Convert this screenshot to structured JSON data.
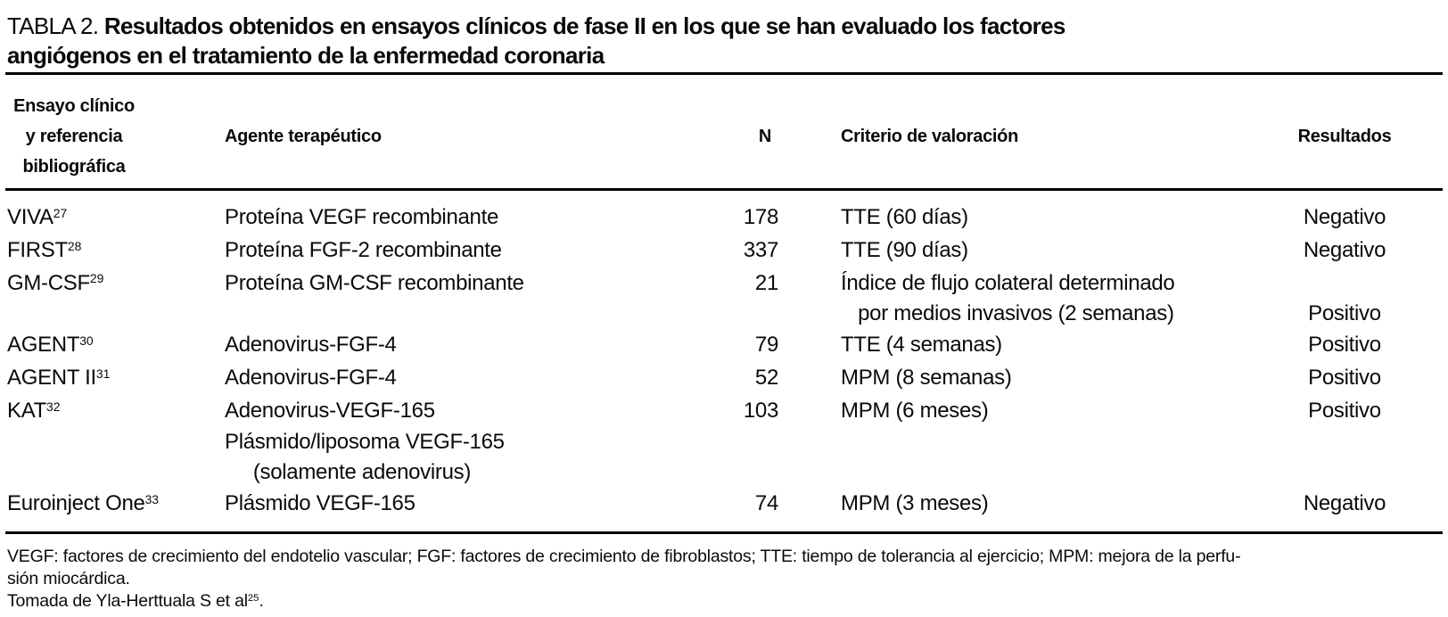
{
  "title": {
    "prefix": "TABLA 2. ",
    "line1_bold": "Resultados obtenidos en ensayos clínicos de fase II en los que se han evaluado los factores",
    "line2_bold": "angiógenos en el tratamiento de la enfermedad coronaria"
  },
  "table": {
    "columns": {
      "trial_lines": [
        "Ensayo clínico",
        "y referencia",
        "bibliográfica"
      ],
      "agent": "Agente terapéutico",
      "n": "N",
      "criterion": "Criterio de valoración",
      "result": "Resultados"
    },
    "rows": [
      {
        "trial": "VIVA",
        "ref": "27",
        "agent": [
          "Proteína VEGF recombinante"
        ],
        "n": "178",
        "criterion": [
          "TTE (60 días)"
        ],
        "result": [
          "Negativo"
        ]
      },
      {
        "trial": "FIRST",
        "ref": "28",
        "agent": [
          "Proteína FGF-2 recombinante"
        ],
        "n": "337",
        "criterion": [
          "TTE (90 días)"
        ],
        "result": [
          "Negativo"
        ]
      },
      {
        "trial": "GM-CSF",
        "ref": "29",
        "agent": [
          "Proteína GM-CSF recombinante"
        ],
        "n": "21",
        "criterion": [
          "Índice de flujo colateral determinado",
          "   por medios invasivos (2 semanas)"
        ],
        "result": [
          "",
          "Positivo"
        ]
      },
      {
        "trial": "AGENT",
        "ref": "30",
        "agent": [
          "Adenovirus-FGF-4"
        ],
        "n": "79",
        "criterion": [
          "TTE (4 semanas)"
        ],
        "result": [
          "Positivo"
        ]
      },
      {
        "trial": "AGENT II",
        "ref": "31",
        "agent": [
          "Adenovirus-FGF-4"
        ],
        "n": "52",
        "criterion": [
          "MPM (8 semanas)"
        ],
        "result": [
          "Positivo"
        ]
      },
      {
        "trial": "KAT",
        "ref": "32",
        "agent": [
          "Adenovirus-VEGF-165",
          "Plásmido/liposoma VEGF-165",
          "     (solamente adenovirus)"
        ],
        "n": "103",
        "criterion": [
          "MPM (6 meses)"
        ],
        "result": [
          "Positivo"
        ]
      },
      {
        "trial": "Euroinject One",
        "ref": "33",
        "agent": [
          "Plásmido VEGF-165"
        ],
        "n": "74",
        "criterion": [
          "MPM (3 meses)"
        ],
        "result": [
          "Negativo"
        ]
      }
    ]
  },
  "footnotes": {
    "line1": "VEGF: factores de crecimiento del endotelio vascular; FGF: factores de crecimiento de fibroblastos; TTE: tiempo de tolerancia al ejercicio; MPM: mejora de la perfu-",
    "line2": "sión miocárdica.",
    "source": {
      "text": "Tomada de Yla-Herttuala S et al",
      "ref": "25",
      "suffix": "."
    }
  },
  "colors": {
    "text": "#0a0a0a",
    "rule": "#000000",
    "background": "#ffffff"
  }
}
